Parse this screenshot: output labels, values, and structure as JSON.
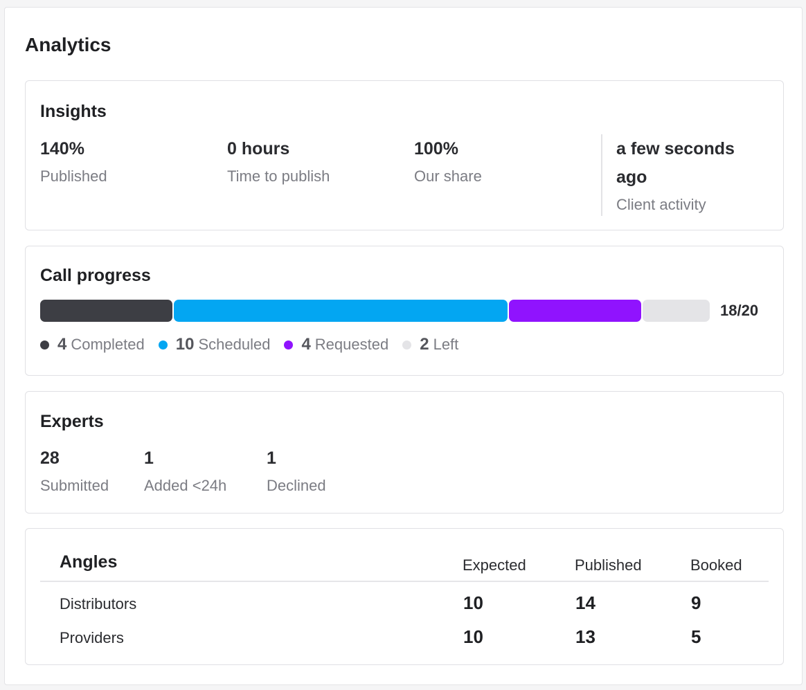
{
  "page_title": "Analytics",
  "insights": {
    "title": "Insights",
    "stats": [
      {
        "value": "140%",
        "label": "Published"
      },
      {
        "value": "0 hours",
        "label": "Time to publish"
      },
      {
        "value": "100%",
        "label": "Our share"
      }
    ],
    "activity": {
      "value_line1": "a few seconds",
      "value_line2": "ago",
      "label": "Client activity"
    }
  },
  "call_progress": {
    "title": "Call progress",
    "count_text": "18/20",
    "total": 20,
    "segments": [
      {
        "count": 4,
        "label": "Completed",
        "color": "#3d3e44"
      },
      {
        "count": 10,
        "label": "Scheduled",
        "color": "#03a6f2"
      },
      {
        "count": 4,
        "label": "Requested",
        "color": "#9013fe"
      },
      {
        "count": 2,
        "label": "Left",
        "color": "#e4e4e7"
      }
    ]
  },
  "experts": {
    "title": "Experts",
    "stats": [
      {
        "value": "28",
        "label": "Submitted"
      },
      {
        "value": "1",
        "label": "Added <24h"
      },
      {
        "value": "1",
        "label": "Declined"
      }
    ]
  },
  "angles": {
    "title": "Angles",
    "columns": [
      "Expected",
      "Published",
      "Booked"
    ],
    "rows": [
      {
        "name": "Distributors",
        "expected": "10",
        "published": "14",
        "booked": "9"
      },
      {
        "name": "Providers",
        "expected": "10",
        "published": "13",
        "booked": "5"
      }
    ]
  }
}
